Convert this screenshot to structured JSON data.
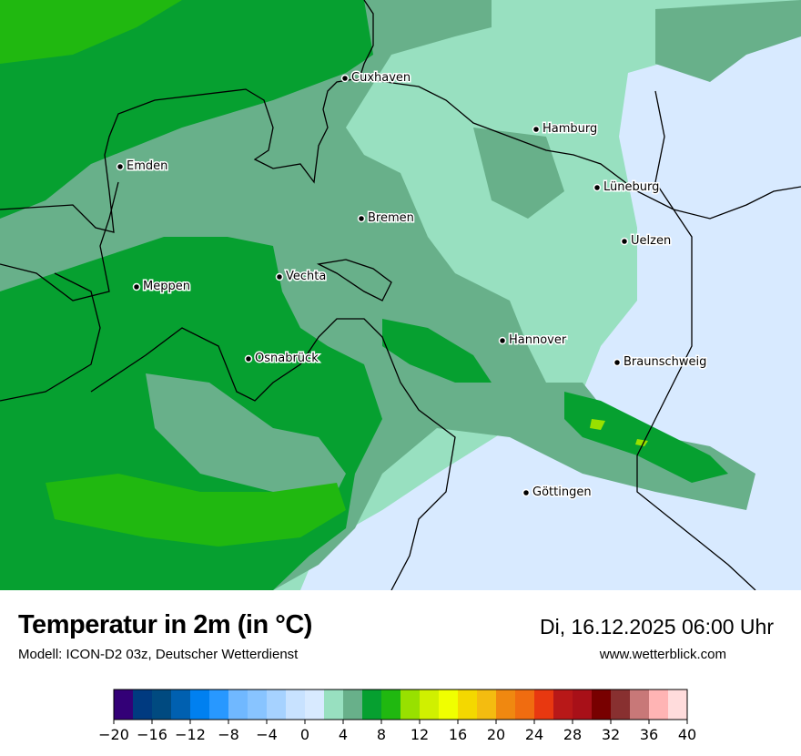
{
  "title": "Temperatur in 2m (in °C)",
  "subtitle": "Modell: ICON-D2 03z, Deutscher Wetterdienst",
  "datetime": "Di, 16.12.2025 06:00 Uhr",
  "website": "www.wetterblick.com",
  "cities": [
    {
      "name": "Cuxhaven"
    },
    {
      "name": "Hamburg"
    },
    {
      "name": "Emden"
    },
    {
      "name": "Lüneburg"
    },
    {
      "name": "Bremen"
    },
    {
      "name": "Uelzen"
    },
    {
      "name": "Vechta"
    },
    {
      "name": "Meppen"
    },
    {
      "name": "Hannover"
    },
    {
      "name": "Osnabrück"
    },
    {
      "name": "Braunschweig"
    },
    {
      "name": "Göttingen"
    }
  ],
  "colorbar": {
    "unit": "°C",
    "min": -20,
    "max": 40,
    "step": 2,
    "tick_labels": [
      "−20",
      "−16",
      "−12",
      "−8",
      "−4",
      "0",
      "4",
      "8",
      "12",
      "16",
      "20",
      "24",
      "28",
      "32",
      "36",
      "40"
    ],
    "colors": [
      "#330077",
      "#003a80",
      "#004a80",
      "#0060b0",
      "#0080f0",
      "#2898ff",
      "#70b8ff",
      "#88c4ff",
      "#a6d2ff",
      "#c8e2ff",
      "#d8eaff",
      "#98e0c0",
      "#68b08a",
      "#06a030",
      "#20b810",
      "#98e000",
      "#d0f000",
      "#f0ff00",
      "#f4d800",
      "#f4bc10",
      "#f08810",
      "#f06c10",
      "#e83810",
      "#b81818",
      "#a81018",
      "#780000",
      "#883030",
      "#c87878",
      "#ffb4b4",
      "#ffdcdc"
    ]
  }
}
